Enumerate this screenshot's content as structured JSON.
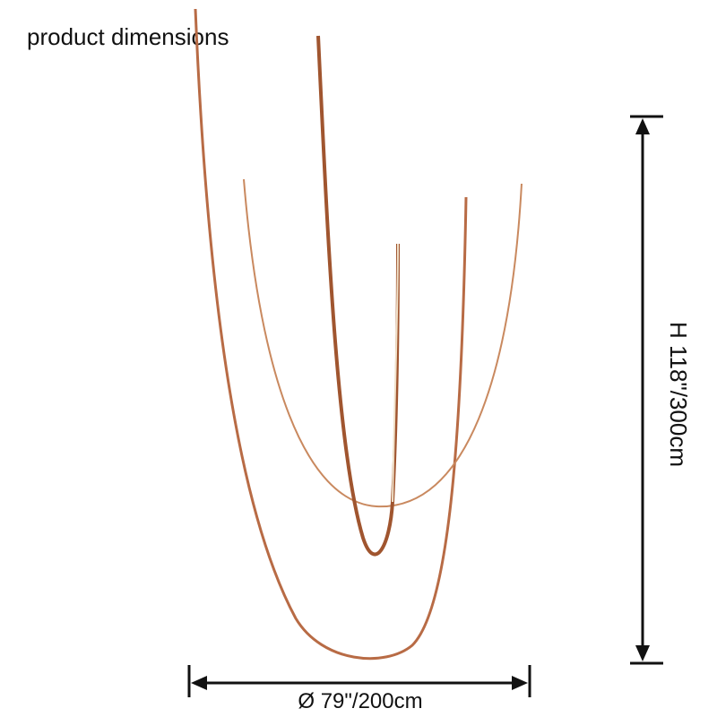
{
  "header": {
    "title": "product dimensions"
  },
  "dimensions": {
    "height": "H 118\"/300cm",
    "diameter": "Ø 79\"/200cm"
  }
}
